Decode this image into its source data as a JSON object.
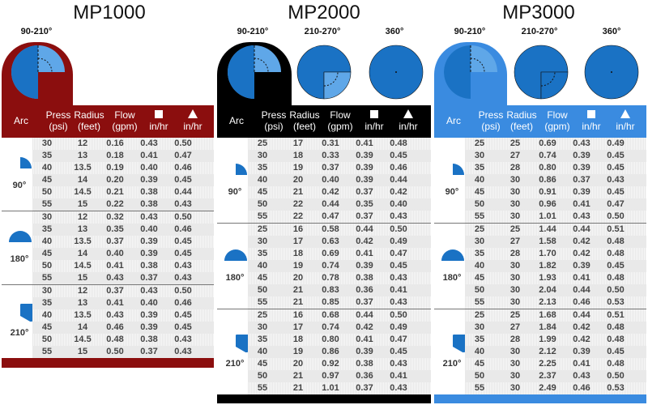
{
  "header_labels": {
    "arc": "Arc",
    "press": [
      "Press",
      "(psi)"
    ],
    "radius": [
      "Radius",
      "(feet)"
    ],
    "flow": [
      "Flow",
      "(gpm)"
    ],
    "sq_unit": "in/hr",
    "tri_unit": "in/hr"
  },
  "colors": {
    "mp1000": "#8b0e0e",
    "mp2000": "#000000",
    "mp3000": "#3a8be0",
    "pie": "#1a72c4",
    "pie_light": "#5fa7e8"
  },
  "models": [
    {
      "title": "MP1000",
      "arc_labels": [
        "90-210°"
      ],
      "groups": [
        {
          "arc": "90°",
          "rows": [
            [
              "30",
              "12",
              "0.16",
              "0.43",
              "0.50"
            ],
            [
              "35",
              "13",
              "0.18",
              "0.41",
              "0.47"
            ],
            [
              "40",
              "13.5",
              "0.19",
              "0.40",
              "0.46"
            ],
            [
              "45",
              "14",
              "0.20",
              "0.39",
              "0.45"
            ],
            [
              "50",
              "14.5",
              "0.21",
              "0.38",
              "0.44"
            ],
            [
              "55",
              "15",
              "0.22",
              "0.38",
              "0.43"
            ]
          ]
        },
        {
          "arc": "180°",
          "rows": [
            [
              "30",
              "12",
              "0.32",
              "0.43",
              "0.50"
            ],
            [
              "35",
              "13",
              "0.35",
              "0.40",
              "0.46"
            ],
            [
              "40",
              "13.5",
              "0.37",
              "0.39",
              "0.45"
            ],
            [
              "45",
              "14",
              "0.40",
              "0.39",
              "0.45"
            ],
            [
              "50",
              "14.5",
              "0.41",
              "0.38",
              "0.43"
            ],
            [
              "55",
              "15",
              "0.43",
              "0.37",
              "0.43"
            ]
          ]
        },
        {
          "arc": "210°",
          "rows": [
            [
              "30",
              "12",
              "0.37",
              "0.43",
              "0.50"
            ],
            [
              "35",
              "13",
              "0.41",
              "0.40",
              "0.46"
            ],
            [
              "40",
              "13.5",
              "0.43",
              "0.39",
              "0.45"
            ],
            [
              "45",
              "14",
              "0.46",
              "0.39",
              "0.45"
            ],
            [
              "50",
              "14.5",
              "0.48",
              "0.38",
              "0.43"
            ],
            [
              "55",
              "15",
              "0.50",
              "0.37",
              "0.43"
            ]
          ]
        }
      ]
    },
    {
      "title": "MP2000",
      "arc_labels": [
        "90-210°",
        "210-270°",
        "360°"
      ],
      "groups": [
        {
          "arc": "90°",
          "rows": [
            [
              "25",
              "17",
              "0.31",
              "0.41",
              "0.48"
            ],
            [
              "30",
              "18",
              "0.33",
              "0.39",
              "0.45"
            ],
            [
              "35",
              "19",
              "0.37",
              "0.39",
              "0.46"
            ],
            [
              "40",
              "20",
              "0.40",
              "0.39",
              "0.44"
            ],
            [
              "45",
              "21",
              "0.42",
              "0.37",
              "0.42"
            ],
            [
              "50",
              "22",
              "0.44",
              "0.35",
              "0.40"
            ],
            [
              "55",
              "22",
              "0.47",
              "0.37",
              "0.43"
            ]
          ]
        },
        {
          "arc": "180°",
          "rows": [
            [
              "25",
              "16",
              "0.58",
              "0.44",
              "0.50"
            ],
            [
              "30",
              "17",
              "0.63",
              "0.42",
              "0.49"
            ],
            [
              "35",
              "18",
              "0.69",
              "0.41",
              "0.47"
            ],
            [
              "40",
              "19",
              "0.74",
              "0.39",
              "0.45"
            ],
            [
              "45",
              "20",
              "0.78",
              "0.38",
              "0.43"
            ],
            [
              "50",
              "21",
              "0.83",
              "0.36",
              "0.41"
            ],
            [
              "55",
              "21",
              "0.85",
              "0.37",
              "0.43"
            ]
          ]
        },
        {
          "arc": "210°",
          "rows": [
            [
              "25",
              "16",
              "0.68",
              "0.44",
              "0.50"
            ],
            [
              "30",
              "17",
              "0.74",
              "0.42",
              "0.49"
            ],
            [
              "35",
              "18",
              "0.80",
              "0.41",
              "0.47"
            ],
            [
              "40",
              "19",
              "0.86",
              "0.39",
              "0.45"
            ],
            [
              "45",
              "20",
              "0.92",
              "0.38",
              "0.43"
            ],
            [
              "50",
              "21",
              "0.97",
              "0.36",
              "0.41"
            ],
            [
              "55",
              "21",
              "1.01",
              "0.37",
              "0.43"
            ]
          ]
        }
      ]
    },
    {
      "title": "MP3000",
      "arc_labels": [
        "90-210°",
        "210-270°",
        "360°"
      ],
      "groups": [
        {
          "arc": "90°",
          "rows": [
            [
              "25",
              "25",
              "0.69",
              "0.43",
              "0.49"
            ],
            [
              "30",
              "27",
              "0.74",
              "0.39",
              "0.45"
            ],
            [
              "35",
              "28",
              "0.80",
              "0.39",
              "0.45"
            ],
            [
              "40",
              "30",
              "0.86",
              "0.37",
              "0.43"
            ],
            [
              "45",
              "30",
              "0.91",
              "0.39",
              "0.45"
            ],
            [
              "50",
              "30",
              "0.96",
              "0.41",
              "0.47"
            ],
            [
              "55",
              "30",
              "1.01",
              "0.43",
              "0.50"
            ]
          ]
        },
        {
          "arc": "180°",
          "rows": [
            [
              "25",
              "25",
              "1.44",
              "0.44",
              "0.51"
            ],
            [
              "30",
              "27",
              "1.58",
              "0.42",
              "0.48"
            ],
            [
              "35",
              "28",
              "1.70",
              "0.42",
              "0.48"
            ],
            [
              "40",
              "30",
              "1.82",
              "0.39",
              "0.45"
            ],
            [
              "45",
              "30",
              "1.93",
              "0.41",
              "0.48"
            ],
            [
              "50",
              "30",
              "2.04",
              "0.44",
              "0.50"
            ],
            [
              "55",
              "30",
              "2.13",
              "0.46",
              "0.53"
            ]
          ]
        },
        {
          "arc": "210°",
          "rows": [
            [
              "25",
              "25",
              "1.68",
              "0.44",
              "0.51"
            ],
            [
              "30",
              "27",
              "1.84",
              "0.42",
              "0.48"
            ],
            [
              "35",
              "28",
              "1.99",
              "0.42",
              "0.48"
            ],
            [
              "40",
              "30",
              "2.12",
              "0.39",
              "0.45"
            ],
            [
              "45",
              "30",
              "2.25",
              "0.41",
              "0.48"
            ],
            [
              "50",
              "30",
              "2.37",
              "0.43",
              "0.50"
            ],
            [
              "55",
              "30",
              "2.49",
              "0.46",
              "0.53"
            ]
          ]
        }
      ]
    }
  ]
}
